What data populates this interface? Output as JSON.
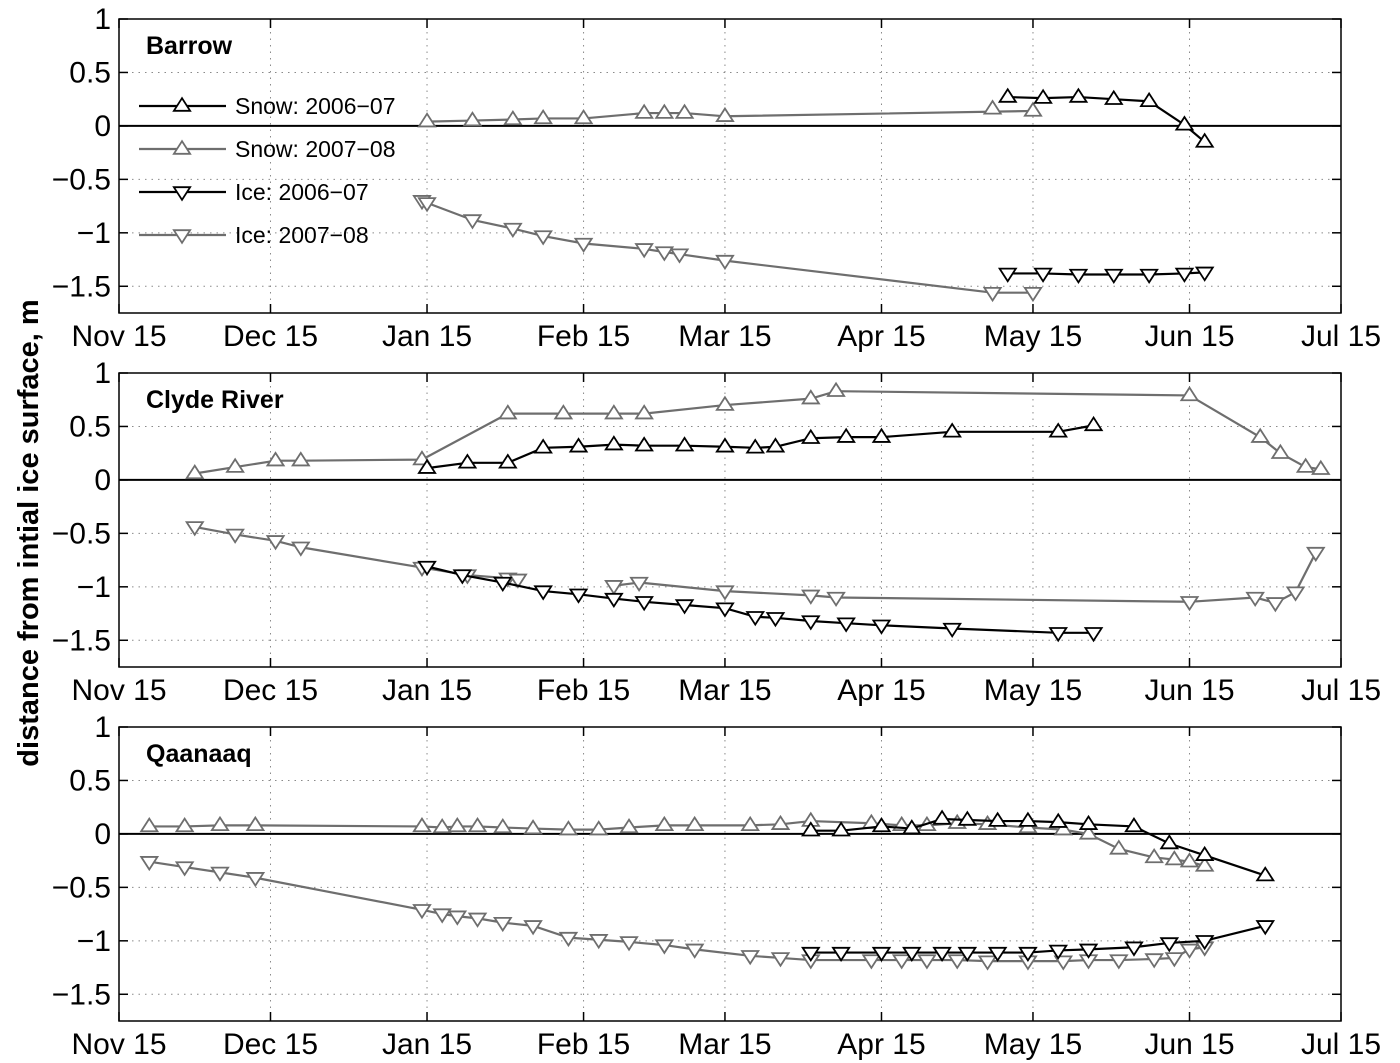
{
  "chart_data": {
    "type": "line",
    "ylabel": "distance from intial ice surface, m",
    "x_ticks": [
      "Nov 15",
      "Dec 15",
      "Jan 15",
      "Feb 15",
      "Mar 15",
      "Apr 15",
      "May 15",
      "Jun 15",
      "Jul 15"
    ],
    "x_tick_days": [
      0,
      30,
      61,
      92,
      120,
      151,
      181,
      212,
      242
    ],
    "x_unit": "days after Nov 15",
    "xlim": [
      0,
      242
    ],
    "ylim": [
      -1.75,
      1
    ],
    "y_ticks": [
      1,
      0.5,
      0,
      -0.5,
      -1,
      -1.5
    ],
    "y_tick_labels": [
      "1",
      "0.5",
      "0",
      "−0.5",
      "−1",
      "−1.5"
    ],
    "grid": true,
    "legend": [
      {
        "label": "Snow: 2006−07",
        "marker": "up",
        "color": "#000000"
      },
      {
        "label": "Snow: 2007−08",
        "marker": "up",
        "color": "#6e6e6e"
      },
      {
        "label": "Ice:  2006−07",
        "marker": "down",
        "color": "#000000"
      },
      {
        "label": "Ice:  2007−08",
        "marker": "down",
        "color": "#6e6e6e"
      }
    ],
    "panels": [
      {
        "title": "Barrow",
        "series": [
          {
            "kind": "snow",
            "season": "2006-07",
            "color": "#6e6e6e",
            "marker": "up",
            "x": [
              61,
              70,
              78,
              84,
              92,
              104,
              108,
              112,
              120,
              181
            ],
            "y": [
              0.04,
              0.05,
              0.06,
              0.07,
              0.07,
              0.12,
              0.12,
              0.12,
              0.09,
              0.14
            ]
          },
          {
            "kind": "snow",
            "season": "2006-07",
            "color": "#000000",
            "marker": "up",
            "x": [
              176,
              183,
              190,
              197,
              204,
              211,
              215
            ],
            "y": [
              0.27,
              0.26,
              0.27,
              0.25,
              0.23,
              0.01,
              -0.15
            ]
          },
          {
            "kind": "snow",
            "season": "2007-08",
            "color": "#6e6e6e",
            "marker": "up",
            "x": [
              173
            ],
            "y": [
              0.16
            ]
          },
          {
            "kind": "ice",
            "season": "2007-08",
            "color": "#6e6e6e",
            "marker": "down",
            "x": [
              60,
              61,
              70,
              78,
              84,
              92,
              104,
              108,
              111,
              120,
              173,
              181
            ],
            "y": [
              -0.7,
              -0.72,
              -0.88,
              -0.96,
              -1.03,
              -1.1,
              -1.15,
              -1.18,
              -1.2,
              -1.26,
              -1.56,
              -1.56
            ]
          },
          {
            "kind": "ice",
            "season": "2006-07",
            "color": "#000000",
            "marker": "down",
            "x": [
              176,
              183,
              190,
              197,
              204,
              211,
              215
            ],
            "y": [
              -1.38,
              -1.38,
              -1.39,
              -1.39,
              -1.39,
              -1.38,
              -1.37
            ]
          }
        ]
      },
      {
        "title": "Clyde River",
        "series": [
          {
            "kind": "snow",
            "season": "2007-08",
            "color": "#6e6e6e",
            "marker": "up",
            "x": [
              15,
              23,
              31,
              36,
              60,
              77,
              88,
              98,
              104,
              120,
              137,
              142,
              212,
              226,
              230,
              235,
              238
            ],
            "y": [
              0.06,
              0.12,
              0.18,
              0.18,
              0.19,
              0.62,
              0.62,
              0.62,
              0.62,
              0.7,
              0.76,
              0.83,
              0.79,
              0.4,
              0.25,
              0.12,
              0.1
            ]
          },
          {
            "kind": "snow",
            "season": "2006-07",
            "color": "#000000",
            "marker": "up",
            "x": [
              61,
              69,
              77,
              84,
              91,
              98,
              104,
              112,
              120,
              126,
              130,
              137,
              144,
              151,
              165,
              186,
              193
            ],
            "y": [
              0.11,
              0.16,
              0.16,
              0.3,
              0.31,
              0.33,
              0.32,
              0.32,
              0.31,
              0.3,
              0.31,
              0.39,
              0.4,
              0.4,
              0.45,
              0.45,
              0.51
            ]
          },
          {
            "kind": "ice",
            "season": "2007-08",
            "color": "#6e6e6e",
            "marker": "down",
            "x": [
              15,
              23,
              31,
              36,
              60,
              69,
              77,
              79
            ],
            "y": [
              -0.44,
              -0.51,
              -0.57,
              -0.63,
              -0.82,
              -0.89,
              -0.92,
              -0.93
            ]
          },
          {
            "kind": "ice",
            "season": "2007-08",
            "color": "#6e6e6e",
            "marker": "down",
            "x": [
              98,
              103,
              120,
              137,
              142,
              212,
              225,
              229,
              233,
              237
            ],
            "y": [
              -0.99,
              -0.96,
              -1.04,
              -1.08,
              -1.1,
              -1.14,
              -1.1,
              -1.15,
              -1.05,
              -0.68
            ]
          },
          {
            "kind": "ice",
            "season": "2006-07",
            "color": "#000000",
            "marker": "down",
            "x": [
              61,
              68,
              76,
              84,
              91,
              98,
              104,
              112,
              120,
              126,
              130,
              137,
              144,
              151,
              165,
              186,
              193
            ],
            "y": [
              -0.81,
              -0.89,
              -0.96,
              -1.04,
              -1.07,
              -1.11,
              -1.14,
              -1.17,
              -1.2,
              -1.28,
              -1.29,
              -1.32,
              -1.34,
              -1.36,
              -1.39,
              -1.43,
              -1.43
            ]
          }
        ]
      },
      {
        "title": "Qaanaaq",
        "series": [
          {
            "kind": "snow",
            "season": "2007-08",
            "color": "#6e6e6e",
            "marker": "up",
            "x": [
              6,
              13,
              20,
              27,
              60,
              64,
              67,
              71,
              76,
              82,
              89,
              95,
              101,
              108,
              114,
              125,
              131,
              137,
              149,
              155,
              160,
              166,
              172,
              180,
              187,
              192,
              198,
              205,
              209,
              212,
              215
            ],
            "y": [
              0.07,
              0.07,
              0.08,
              0.08,
              0.07,
              0.06,
              0.07,
              0.07,
              0.06,
              0.05,
              0.04,
              0.04,
              0.06,
              0.08,
              0.08,
              0.08,
              0.09,
              0.12,
              0.1,
              0.08,
              0.08,
              0.1,
              0.09,
              0.06,
              0.04,
              0.0,
              -0.14,
              -0.22,
              -0.24,
              -0.26,
              -0.3
            ]
          },
          {
            "kind": "snow",
            "season": "2006-07",
            "color": "#000000",
            "marker": "up",
            "x": [
              137,
              143,
              151,
              157,
              163,
              168,
              174,
              180,
              186,
              192,
              201,
              208,
              215,
              227
            ],
            "y": [
              0.03,
              0.03,
              0.07,
              0.05,
              0.14,
              0.13,
              0.12,
              0.12,
              0.11,
              0.09,
              0.07,
              -0.09,
              -0.2,
              -0.39
            ]
          },
          {
            "kind": "ice",
            "season": "2007-08",
            "color": "#6e6e6e",
            "marker": "down",
            "x": [
              6,
              13,
              20,
              27,
              60,
              64,
              67,
              71,
              76,
              82,
              89,
              95,
              101,
              108,
              114,
              125,
              131,
              137,
              149,
              155,
              160,
              166,
              172,
              180,
              187,
              192,
              198,
              205,
              209,
              212,
              215
            ],
            "y": [
              -0.26,
              -0.31,
              -0.36,
              -0.41,
              -0.71,
              -0.75,
              -0.77,
              -0.79,
              -0.83,
              -0.86,
              -0.97,
              -0.99,
              -1.01,
              -1.04,
              -1.08,
              -1.14,
              -1.16,
              -1.18,
              -1.18,
              -1.18,
              -1.18,
              -1.18,
              -1.19,
              -1.19,
              -1.19,
              -1.18,
              -1.18,
              -1.17,
              -1.16,
              -1.08,
              -1.06
            ]
          },
          {
            "kind": "ice",
            "season": "2006-07",
            "color": "#000000",
            "marker": "down",
            "x": [
              137,
              143,
              151,
              157,
              163,
              168,
              174,
              180,
              186,
              192,
              201,
              208,
              215,
              227
            ],
            "y": [
              -1.11,
              -1.11,
              -1.11,
              -1.11,
              -1.11,
              -1.11,
              -1.11,
              -1.11,
              -1.09,
              -1.08,
              -1.06,
              -1.02,
              -1.0,
              -0.86
            ]
          }
        ]
      }
    ]
  }
}
